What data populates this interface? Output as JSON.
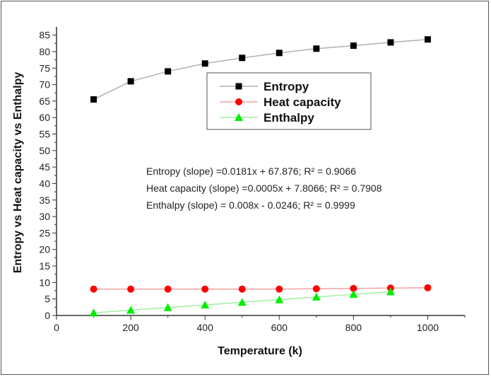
{
  "chart_data": {
    "type": "line",
    "xlabel": "Temperature (k)",
    "ylabel": "Entropy vs Heat capacity vs Enthalpy",
    "xlim": [
      0,
      1100
    ],
    "ylim": [
      0,
      87.5
    ],
    "xticks": [
      0,
      200,
      400,
      600,
      800,
      1000
    ],
    "yticks": [
      0,
      5,
      10,
      15,
      20,
      25,
      30,
      35,
      40,
      45,
      50,
      55,
      60,
      65,
      70,
      75,
      80,
      85
    ],
    "grid": false,
    "legend_position": "top-center",
    "series": [
      {
        "name": "Entropy",
        "marker": "square",
        "marker_color": "#000000",
        "line_color": "#b0b0b0",
        "x": [
          100,
          200,
          300,
          400,
          500,
          600,
          700,
          800,
          900,
          1000
        ],
        "y": [
          65.5,
          71.0,
          74.0,
          76.4,
          78.1,
          79.6,
          80.9,
          81.8,
          82.8,
          83.7
        ]
      },
      {
        "name": "Heat capacity",
        "marker": "circle",
        "marker_color": "#ff0000",
        "line_color": "#f4a0a0",
        "x": [
          100,
          200,
          300,
          400,
          500,
          600,
          700,
          800,
          900,
          1000
        ],
        "y": [
          8.0,
          8.0,
          8.0,
          8.0,
          8.0,
          8.0,
          8.1,
          8.2,
          8.3,
          8.4
        ]
      },
      {
        "name": "Enthalpy",
        "marker": "triangle",
        "marker_color": "#00ee00",
        "line_color": "#a0f0a0",
        "x": [
          100,
          200,
          300,
          400,
          500,
          600,
          700,
          800,
          900
        ],
        "y": [
          0.8,
          1.6,
          2.4,
          3.2,
          4.0,
          4.8,
          5.6,
          6.4,
          7.2
        ]
      }
    ],
    "annotations": [
      "Entropy (slope) =0.0181x + 67.876; R² = 0.9066",
      "Heat capacity (slope) =0.0005x + 7.8066; R² = 0.7908",
      "Enthalpy (slope) = 0.008x - 0.0246; R² = 0.9999"
    ]
  }
}
